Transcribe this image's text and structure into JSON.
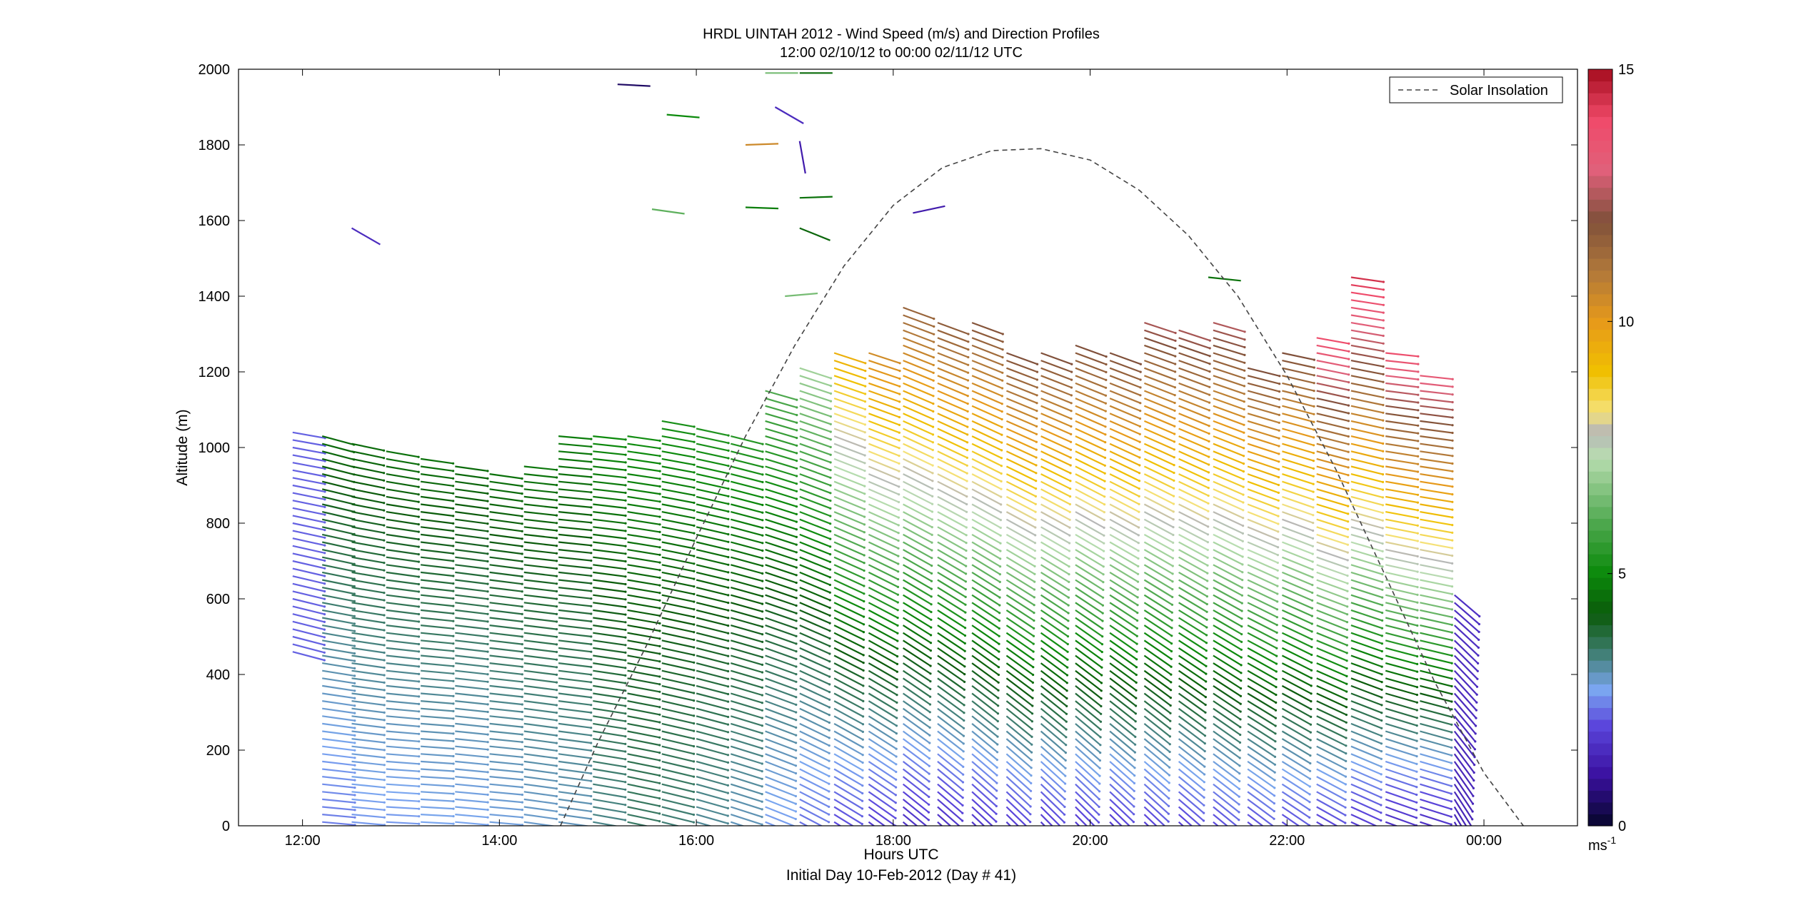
{
  "chart_data": {
    "type": "vector-profile",
    "title": "HRDL UINTAH 2012 - Wind Speed (m/s) and Direction Profiles",
    "subtitle": "12:00 02/10/12 to 00:00 02/11/12  UTC",
    "xlabel": "Hours UTC",
    "xlabel2": "Initial Day 10-Feb-2012 (Day # 41)",
    "ylabel": "Altitude (m)",
    "xlim_hours": [
      11.35,
      24.95
    ],
    "ylim": [
      0,
      2000
    ],
    "x_tick_hours": [
      12,
      14,
      16,
      18,
      20,
      22,
      24
    ],
    "x_tick_labels": [
      "12:00",
      "14:00",
      "16:00",
      "18:00",
      "20:00",
      "22:00",
      "00:00"
    ],
    "y_ticks": [
      0,
      200,
      400,
      600,
      800,
      1000,
      1200,
      1400,
      1600,
      1800,
      2000
    ],
    "legend": {
      "label": "Solar Insolation",
      "position": "top-right"
    },
    "colorbar": {
      "unit": "ms",
      "unit_exp": "-1",
      "min": 0,
      "max": 15,
      "ticks": [
        0,
        5,
        10,
        15
      ],
      "tick_labels": [
        "0",
        "5",
        "10",
        "15"
      ],
      "stops": [
        {
          "v": 0,
          "c": "#06062a"
        },
        {
          "v": 1,
          "c": "#3a10a0"
        },
        {
          "v": 2,
          "c": "#5b46dc"
        },
        {
          "v": 2.7,
          "c": "#7aa6f0"
        },
        {
          "v": 3.5,
          "c": "#3a7a66"
        },
        {
          "v": 4.2,
          "c": "#0b5a0b"
        },
        {
          "v": 5,
          "c": "#0b8a0b"
        },
        {
          "v": 6,
          "c": "#4ea84e"
        },
        {
          "v": 7.3,
          "c": "#b8ddb0"
        },
        {
          "v": 7.8,
          "c": "#b7b7b7"
        },
        {
          "v": 8.2,
          "c": "#f5e27a"
        },
        {
          "v": 9,
          "c": "#f0c000"
        },
        {
          "v": 10,
          "c": "#e79a1a"
        },
        {
          "v": 11,
          "c": "#b0783a"
        },
        {
          "v": 12,
          "c": "#80503a"
        },
        {
          "v": 13,
          "c": "#e0607a"
        },
        {
          "v": 14,
          "c": "#f04a6a"
        },
        {
          "v": 15,
          "c": "#a50d1e"
        }
      ]
    },
    "solar_insolation": {
      "x_hours": [
        14.62,
        15.0,
        15.5,
        16.0,
        16.5,
        17.0,
        17.5,
        18.0,
        18.5,
        19.0,
        19.5,
        20.0,
        20.5,
        21.0,
        21.5,
        22.0,
        22.5,
        23.0,
        23.5,
        24.0,
        24.4
      ],
      "y": [
        0,
        220,
        480,
        760,
        1030,
        1270,
        1480,
        1640,
        1740,
        1785,
        1790,
        1760,
        1680,
        1560,
        1400,
        1190,
        940,
        660,
        380,
        140,
        0
      ]
    },
    "profiles": [
      {
        "t": 11.9,
        "top": 1040,
        "bottom": 450,
        "spd_low": 2.2,
        "spd_high": 2.2,
        "dir_low": -15,
        "dir_high": -10
      },
      {
        "t": 12.2,
        "top": 1030,
        "bottom": 0,
        "spd_low": 2.4,
        "spd_high": 4.5,
        "dir_low": -5,
        "dir_high": -15
      },
      {
        "t": 12.5,
        "top": 1020,
        "bottom": 0,
        "spd_low": 2.6,
        "spd_high": 4.5,
        "dir_low": -5,
        "dir_high": -12
      },
      {
        "t": 12.85,
        "top": 1000,
        "bottom": 0,
        "spd_low": 2.6,
        "spd_high": 4.6,
        "dir_low": -3,
        "dir_high": -10
      },
      {
        "t": 13.2,
        "top": 980,
        "bottom": 0,
        "spd_low": 2.7,
        "spd_high": 4.6,
        "dir_low": -3,
        "dir_high": -8
      },
      {
        "t": 13.55,
        "top": 960,
        "bottom": 0,
        "spd_low": 2.7,
        "spd_high": 4.5,
        "dir_low": -5,
        "dir_high": -8
      },
      {
        "t": 13.9,
        "top": 940,
        "bottom": 0,
        "spd_low": 2.8,
        "spd_high": 4.6,
        "dir_low": -5,
        "dir_high": -8
      },
      {
        "t": 14.25,
        "top": 960,
        "bottom": 0,
        "spd_low": 2.9,
        "spd_high": 4.7,
        "dir_low": -8,
        "dir_high": -6
      },
      {
        "t": 14.6,
        "top": 1040,
        "bottom": 0,
        "spd_low": 3.0,
        "spd_high": 4.8,
        "dir_low": -8,
        "dir_high": -5
      },
      {
        "t": 14.95,
        "top": 1030,
        "bottom": 0,
        "spd_low": 3.3,
        "spd_high": 5.0,
        "dir_low": -10,
        "dir_high": -6
      },
      {
        "t": 15.3,
        "top": 1030,
        "bottom": 0,
        "spd_low": 3.5,
        "spd_high": 5.1,
        "dir_low": -12,
        "dir_high": -8
      },
      {
        "t": 15.65,
        "top": 1080,
        "bottom": 0,
        "spd_low": 3.4,
        "spd_high": 5.2,
        "dir_low": -14,
        "dir_high": -10
      },
      {
        "t": 16.0,
        "top": 1050,
        "bottom": 0,
        "spd_low": 3.2,
        "spd_high": 5.3,
        "dir_low": -16,
        "dir_high": -12
      },
      {
        "t": 16.35,
        "top": 1030,
        "bottom": 0,
        "spd_low": 3.0,
        "spd_high": 5.4,
        "dir_low": -18,
        "dir_high": -14
      },
      {
        "t": 16.7,
        "top": 1150,
        "bottom": 0,
        "spd_low": 2.6,
        "spd_high": 6.0,
        "dir_low": -22,
        "dir_high": -16
      },
      {
        "t": 17.05,
        "top": 1210,
        "bottom": 0,
        "spd_low": 2.3,
        "spd_high": 7.0,
        "dir_low": -28,
        "dir_high": -18
      },
      {
        "t": 17.4,
        "top": 1260,
        "bottom": 0,
        "spd_low": 2.0,
        "spd_high": 9.5,
        "dir_low": -32,
        "dir_high": -18
      },
      {
        "t": 17.75,
        "top": 1260,
        "bottom": 0,
        "spd_low": 1.8,
        "spd_high": 10.5,
        "dir_low": -36,
        "dir_high": -18
      },
      {
        "t": 18.1,
        "top": 1370,
        "bottom": 0,
        "spd_low": 1.6,
        "spd_high": 11.5,
        "dir_low": -40,
        "dir_high": -20
      },
      {
        "t": 18.45,
        "top": 1340,
        "bottom": 0,
        "spd_low": 1.6,
        "spd_high": 11.8,
        "dir_low": -42,
        "dir_high": -20
      },
      {
        "t": 18.8,
        "top": 1340,
        "bottom": 0,
        "spd_low": 1.7,
        "spd_high": 12.0,
        "dir_low": -44,
        "dir_high": -20
      },
      {
        "t": 19.15,
        "top": 1250,
        "bottom": 0,
        "spd_low": 1.8,
        "spd_high": 12.0,
        "dir_low": -45,
        "dir_high": -20
      },
      {
        "t": 19.5,
        "top": 1250,
        "bottom": 0,
        "spd_low": 1.8,
        "spd_high": 12.0,
        "dir_low": -46,
        "dir_high": -20
      },
      {
        "t": 19.85,
        "top": 1270,
        "bottom": 0,
        "spd_low": 1.8,
        "spd_high": 12.0,
        "dir_low": -46,
        "dir_high": -20
      },
      {
        "t": 20.2,
        "top": 1250,
        "bottom": 0,
        "spd_low": 1.8,
        "spd_high": 12.0,
        "dir_low": -45,
        "dir_high": -20
      },
      {
        "t": 20.55,
        "top": 1340,
        "bottom": 0,
        "spd_low": 1.9,
        "spd_high": 12.5,
        "dir_low": -44,
        "dir_high": -18
      },
      {
        "t": 20.9,
        "top": 1320,
        "bottom": 0,
        "spd_low": 1.9,
        "spd_high": 12.5,
        "dir_low": -42,
        "dir_high": -18
      },
      {
        "t": 21.25,
        "top": 1330,
        "bottom": 0,
        "spd_low": 2.0,
        "spd_high": 12.5,
        "dir_low": -40,
        "dir_high": -16
      },
      {
        "t": 21.6,
        "top": 1210,
        "bottom": 0,
        "spd_low": 2.0,
        "spd_high": 12.0,
        "dir_low": -38,
        "dir_high": -14
      },
      {
        "t": 21.95,
        "top": 1250,
        "bottom": 0,
        "spd_low": 2.0,
        "spd_high": 12.0,
        "dir_low": -35,
        "dir_high": -12
      },
      {
        "t": 22.3,
        "top": 1300,
        "bottom": 0,
        "spd_low": 1.9,
        "spd_high": 14.0,
        "dir_low": -30,
        "dir_high": -10
      },
      {
        "t": 22.65,
        "top": 1460,
        "bottom": 0,
        "spd_low": 1.8,
        "spd_high": 14.5,
        "dir_low": -25,
        "dir_high": -8
      },
      {
        "t": 23.0,
        "top": 1250,
        "bottom": 0,
        "spd_low": 1.6,
        "spd_high": 13.8,
        "dir_low": -20,
        "dir_high": -6
      },
      {
        "t": 23.35,
        "top": 1200,
        "bottom": 0,
        "spd_low": 1.6,
        "spd_high": 13.5,
        "dir_low": -18,
        "dir_high": -6
      },
      {
        "t": 23.7,
        "top": 620,
        "bottom": 0,
        "spd_low": 1.4,
        "spd_high": 1.6,
        "dir_low": -60,
        "dir_high": -40
      }
    ],
    "sparse_vectors": [
      {
        "t": 15.2,
        "alt": 1960,
        "spd": 0.5,
        "dir": -3
      },
      {
        "t": 15.7,
        "alt": 1880,
        "spd": 5.0,
        "dir": -5
      },
      {
        "t": 16.7,
        "alt": 1990,
        "spd": 6.5,
        "dir": 0
      },
      {
        "t": 17.05,
        "alt": 1990,
        "spd": 4.5,
        "dir": 0
      },
      {
        "t": 16.8,
        "alt": 1900,
        "spd": 1.5,
        "dir": -30
      },
      {
        "t": 16.5,
        "alt": 1800,
        "spd": 10.5,
        "dir": 2
      },
      {
        "t": 17.05,
        "alt": 1810,
        "spd": 1.2,
        "dir": -80
      },
      {
        "t": 12.5,
        "alt": 1580,
        "spd": 1.5,
        "dir": -30
      },
      {
        "t": 15.55,
        "alt": 1630,
        "spd": 6.2,
        "dir": -8
      },
      {
        "t": 16.5,
        "alt": 1635,
        "spd": 4.8,
        "dir": -2
      },
      {
        "t": 17.05,
        "alt": 1660,
        "spd": 4.6,
        "dir": 2
      },
      {
        "t": 17.05,
        "alt": 1580,
        "spd": 4.4,
        "dir": -22
      },
      {
        "t": 18.2,
        "alt": 1620,
        "spd": 1.2,
        "dir": 12
      },
      {
        "t": 16.9,
        "alt": 1400,
        "spd": 6.5,
        "dir": 5
      },
      {
        "t": 21.2,
        "alt": 1450,
        "spd": 4.6,
        "dir": -6
      }
    ]
  }
}
